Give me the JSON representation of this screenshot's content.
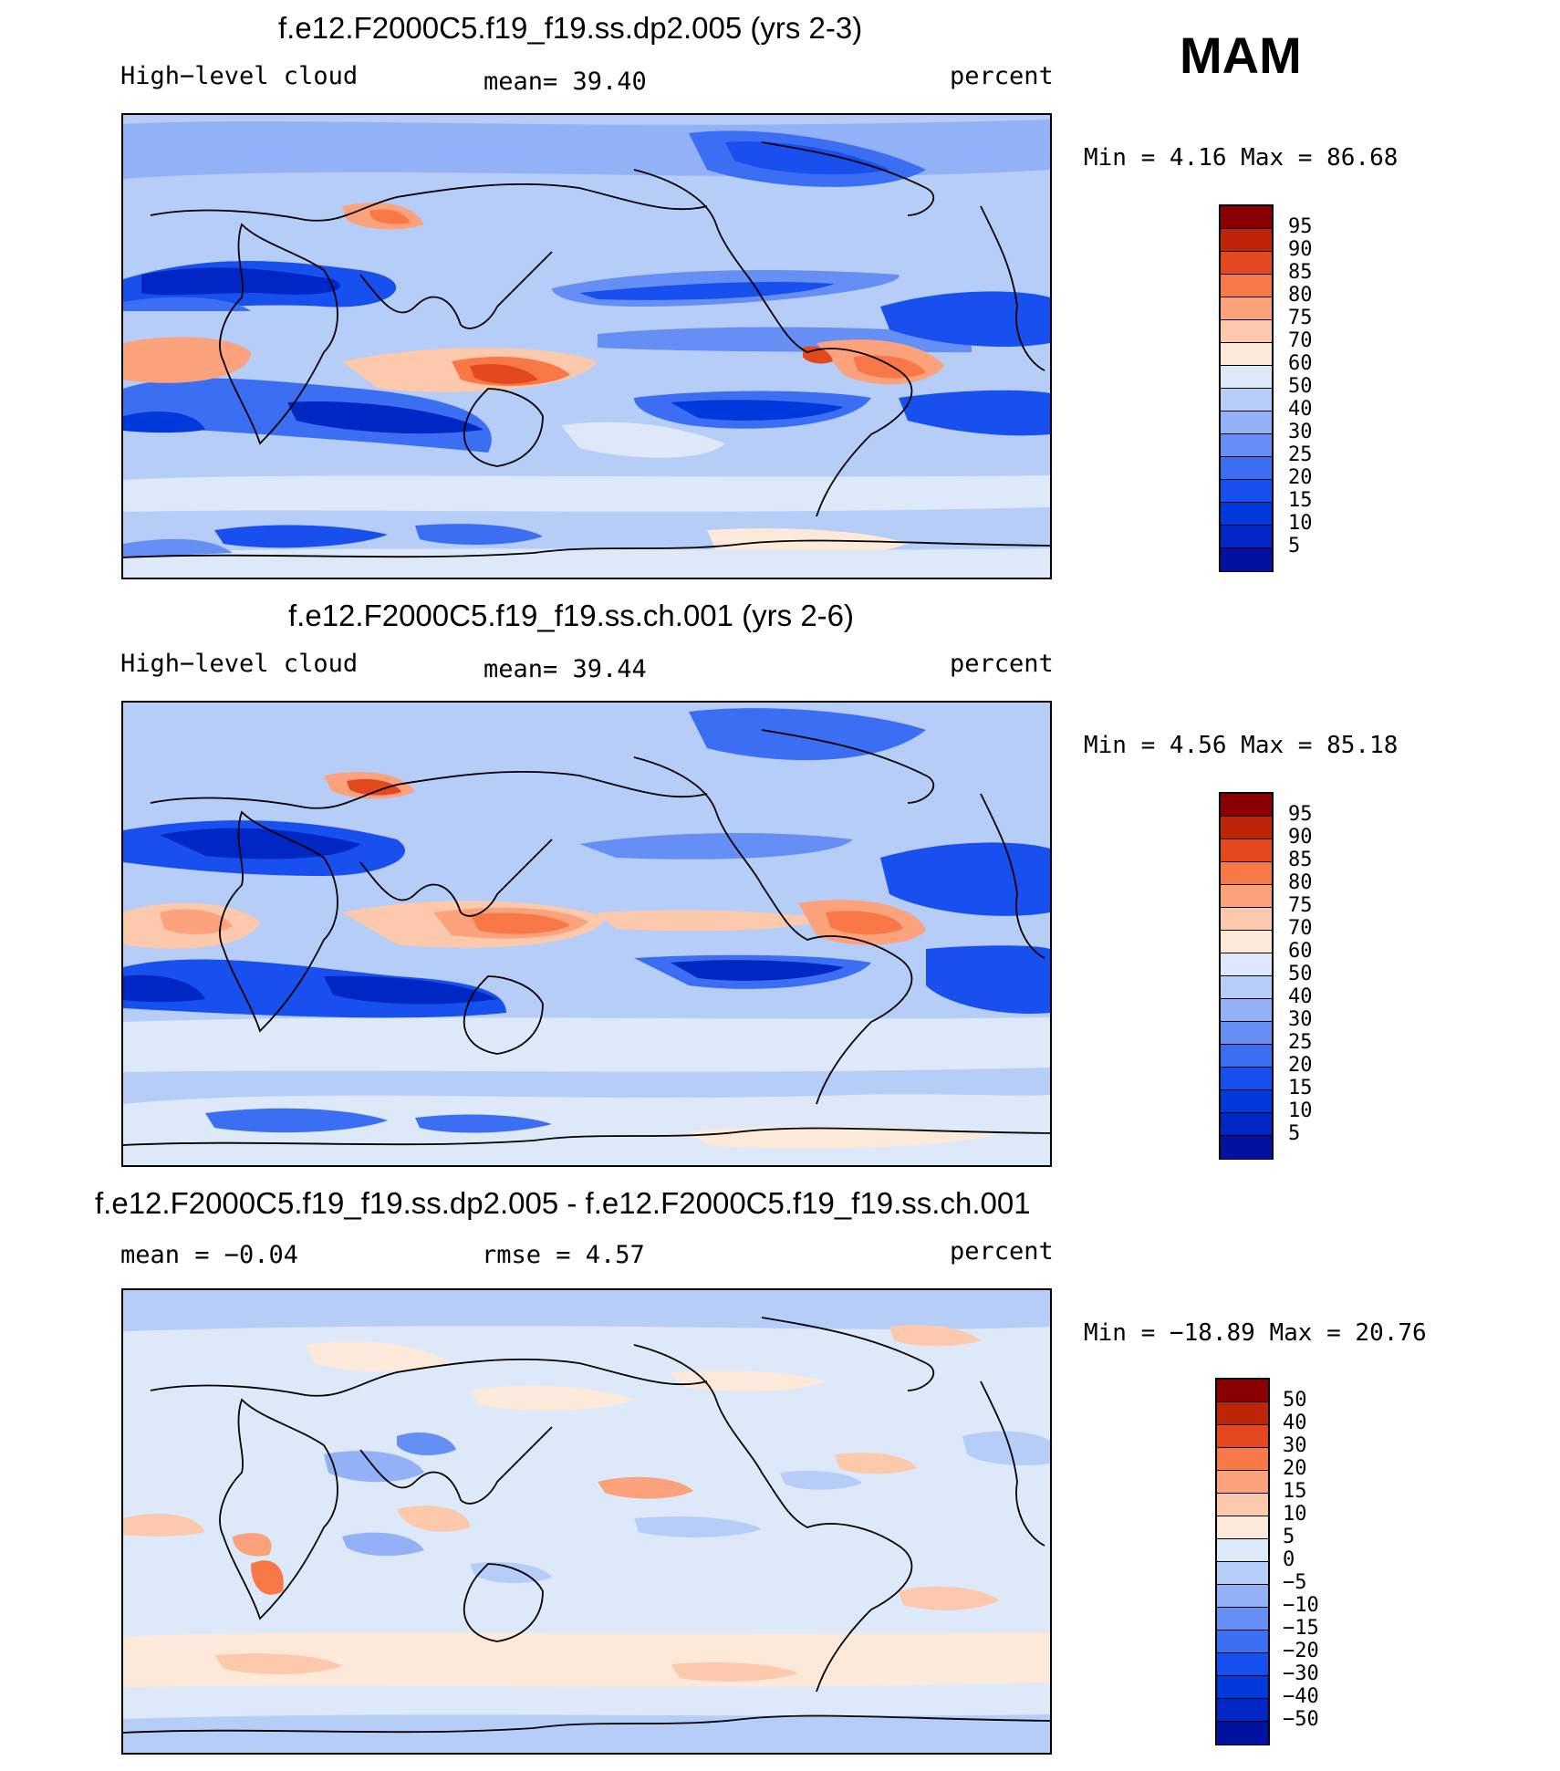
{
  "season": "MAM",
  "colors": {
    "prec_scale": [
      "#000080",
      "#00129f",
      "#0027c4",
      "#0039db",
      "#1850f0",
      "#3c6ef4",
      "#668ff5",
      "#92b1f6",
      "#b6cdf7",
      "#dde9f9",
      "#fde9da",
      "#fcc9ac",
      "#fca27c",
      "#f97848",
      "#e3481f",
      "#bd2506",
      "#8a0000"
    ],
    "land_outline": "#000000",
    "background": "#ffffff"
  },
  "panels": [
    {
      "title": "f.e12.F2000C5.f19_f19.ss.dp2.005 (yrs 2-3)",
      "left_label": "High−level cloud",
      "center_label": "mean=   39.40",
      "right_label": "percent",
      "minmax": "Min =    4.16  Max =   86.68",
      "colorbar_labels": [
        "95",
        "90",
        "85",
        "80",
        "75",
        "70",
        "60",
        "50",
        "40",
        "30",
        "25",
        "20",
        "15",
        "10",
        "5"
      ]
    },
    {
      "title": "f.e12.F2000C5.f19_f19.ss.ch.001 (yrs 2-6)",
      "left_label": "High−level cloud",
      "center_label": "mean=   39.44",
      "right_label": "percent",
      "minmax": "Min =    4.56  Max =   85.18",
      "colorbar_labels": [
        "95",
        "90",
        "85",
        "80",
        "75",
        "70",
        "60",
        "50",
        "40",
        "30",
        "25",
        "20",
        "15",
        "10",
        "5"
      ]
    },
    {
      "title": "f.e12.F2000C5.f19_f19.ss.dp2.005 - f.e12.F2000C5.f19_f19.ss.ch.001",
      "left_label": "mean =   −0.04",
      "center_label": "rmse =    4.57",
      "right_label": "percent",
      "minmax": "Min = −18.89  Max =   20.76",
      "colorbar_labels": [
        "50",
        "40",
        "30",
        "20",
        "15",
        "10",
        "5",
        "0",
        "−5",
        "−10",
        "−15",
        "−20",
        "−30",
        "−40",
        "−50"
      ]
    }
  ]
}
